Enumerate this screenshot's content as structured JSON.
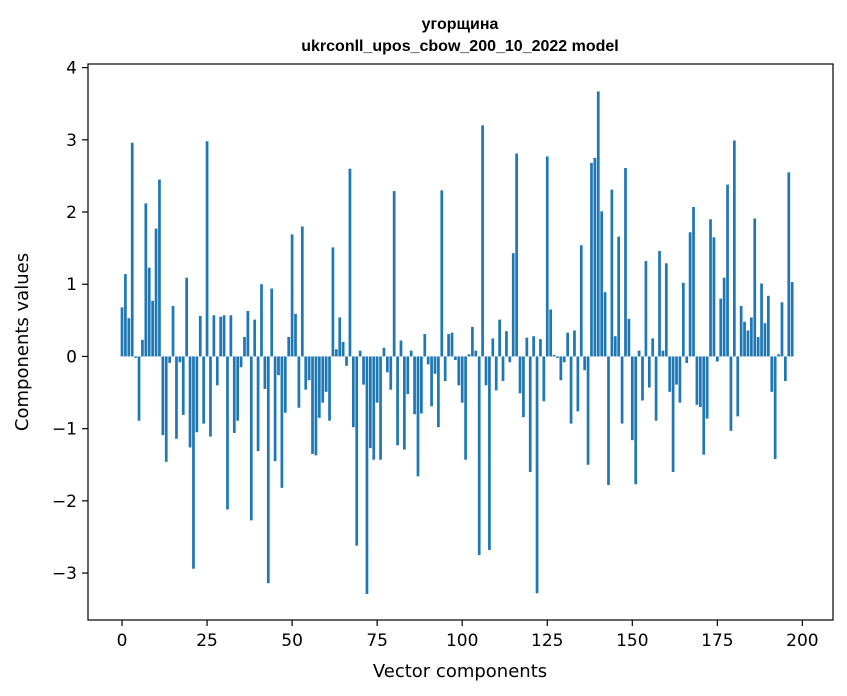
{
  "chart_data": {
    "type": "bar",
    "title_line1": "угорщина",
    "title_line2": "ukrconll_upos_cbow_200_10_2022 model",
    "xlabel": "Vector components",
    "ylabel": "Components values",
    "xlim": [
      -10,
      209
    ],
    "ylim": [
      -3.65,
      4.05
    ],
    "xticks": [
      0,
      25,
      50,
      75,
      100,
      125,
      150,
      175,
      200
    ],
    "yticks": [
      -3,
      -2,
      -1,
      0,
      1,
      2,
      3,
      4
    ],
    "bar_color": "#1f77b4",
    "grid": false,
    "values": [
      0.68,
      1.14,
      0.53,
      2.96,
      -0.02,
      -0.89,
      0.23,
      2.12,
      1.23,
      0.77,
      1.77,
      2.45,
      -1.09,
      -1.46,
      -0.09,
      0.7,
      -1.14,
      -0.08,
      -0.81,
      1.09,
      -1.26,
      -2.94,
      -1.05,
      0.56,
      -0.93,
      2.98,
      -1.11,
      0.57,
      -0.4,
      0.55,
      0.57,
      -2.12,
      0.57,
      -1.06,
      -0.89,
      -0.15,
      0.27,
      0.63,
      -2.27,
      0.51,
      -1.31,
      1.0,
      -0.45,
      -3.14,
      0.94,
      -1.45,
      -0.26,
      -1.82,
      -0.78,
      0.27,
      1.69,
      0.59,
      -0.71,
      1.8,
      -0.46,
      -0.33,
      -1.35,
      -1.37,
      -0.85,
      -0.64,
      -0.49,
      -0.89,
      1.51,
      0.1,
      0.54,
      0.2,
      -0.13,
      2.6,
      -0.98,
      -2.62,
      0.08,
      -0.39,
      -3.29,
      -1.27,
      -1.43,
      -0.64,
      -1.43,
      0.12,
      -0.22,
      -0.46,
      2.29,
      -1.23,
      0.22,
      -1.29,
      -0.52,
      0.08,
      -0.8,
      -1.66,
      -0.79,
      0.31,
      -0.11,
      -0.69,
      -0.24,
      -0.98,
      2.3,
      -0.34,
      0.31,
      0.33,
      -0.05,
      -0.4,
      -0.64,
      -1.43,
      0.03,
      0.41,
      0.08,
      -2.75,
      3.2,
      -0.4,
      -2.68,
      0.25,
      -0.47,
      0.51,
      -0.34,
      0.35,
      -0.08,
      1.43,
      2.81,
      -0.51,
      -0.84,
      0.26,
      -1.6,
      0.28,
      -3.28,
      0.24,
      -0.62,
      2.77,
      0.65,
      0.02,
      -0.02,
      -0.33,
      -0.08,
      0.33,
      -0.93,
      0.36,
      -0.76,
      1.54,
      -0.19,
      -1.5,
      2.68,
      2.75,
      3.67,
      2.01,
      0.89,
      -1.78,
      2.31,
      0.28,
      1.66,
      -0.93,
      2.61,
      0.52,
      -1.16,
      -1.77,
      0.08,
      -0.61,
      1.32,
      -0.43,
      0.25,
      -0.89,
      1.46,
      0.08,
      1.29,
      -0.49,
      -1.6,
      -0.39,
      -0.64,
      1.02,
      -0.09,
      1.72,
      2.07,
      -0.67,
      -0.7,
      -1.36,
      -0.86,
      1.9,
      1.65,
      -0.07,
      0.8,
      1.09,
      2.38,
      -1.03,
      2.99,
      -0.83,
      0.7,
      0.48,
      0.36,
      0.54,
      1.91,
      0.27,
      1.01,
      0.46,
      0.84,
      -0.49,
      -1.42,
      0.03,
      0.75,
      -0.34,
      2.55,
      1.03
    ]
  }
}
